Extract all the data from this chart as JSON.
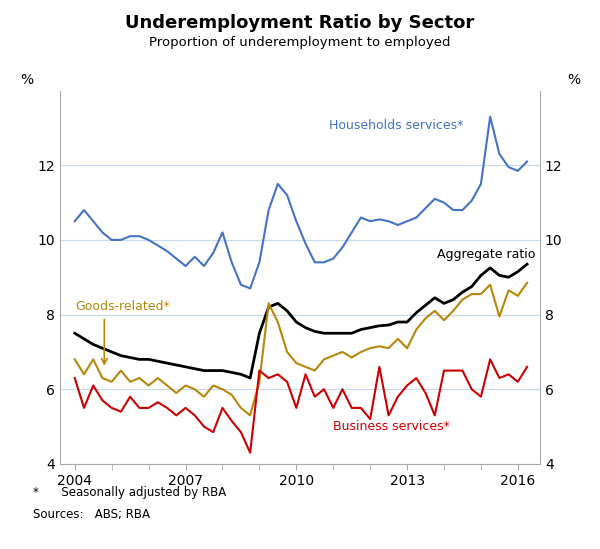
{
  "title": "Underemployment Ratio by Sector",
  "subtitle": "Proportion of underemployment to employed",
  "ylabel_left": "%",
  "ylabel_right": "%",
  "footnote1": "*      Seasonally adjusted by RBA",
  "footnote2": "Sources:   ABS; RBA",
  "ylim": [
    4,
    14
  ],
  "yticks": [
    4,
    6,
    8,
    10,
    12
  ],
  "xlim_start": 2003.6,
  "xlim_end": 2016.6,
  "xtick_years": [
    2004,
    2007,
    2010,
    2013,
    2016
  ],
  "grid_color": "#c5d9f1",
  "background_color": "#ffffff",
  "households_color": "#4472c4",
  "aggregate_color": "#000000",
  "goods_color": "#b8860b",
  "business_color": "#cc0000",
  "households_label": "Households services*",
  "aggregate_label": "Aggregate ratio",
  "goods_label": "Goods-related*",
  "business_label": "Business services*",
  "households_data": {
    "dates": [
      2004.0,
      2004.25,
      2004.5,
      2004.75,
      2005.0,
      2005.25,
      2005.5,
      2005.75,
      2006.0,
      2006.25,
      2006.5,
      2006.75,
      2007.0,
      2007.25,
      2007.5,
      2007.75,
      2008.0,
      2008.25,
      2008.5,
      2008.75,
      2009.0,
      2009.25,
      2009.5,
      2009.75,
      2010.0,
      2010.25,
      2010.5,
      2010.75,
      2011.0,
      2011.25,
      2011.5,
      2011.75,
      2012.0,
      2012.25,
      2012.5,
      2012.75,
      2013.0,
      2013.25,
      2013.5,
      2013.75,
      2014.0,
      2014.25,
      2014.5,
      2014.75,
      2015.0,
      2015.25,
      2015.5,
      2015.75,
      2016.0,
      2016.25
    ],
    "values": [
      10.5,
      10.8,
      10.5,
      10.2,
      10.0,
      10.0,
      10.1,
      10.1,
      10.0,
      9.85,
      9.7,
      9.5,
      9.3,
      9.55,
      9.3,
      9.65,
      10.2,
      9.4,
      8.8,
      8.7,
      9.4,
      10.8,
      11.5,
      11.2,
      10.5,
      9.9,
      9.4,
      9.4,
      9.5,
      9.8,
      10.2,
      10.6,
      10.5,
      10.55,
      10.5,
      10.4,
      10.5,
      10.6,
      10.85,
      11.1,
      11.0,
      10.8,
      10.8,
      11.05,
      11.5,
      13.3,
      12.3,
      11.95,
      11.85,
      12.1
    ]
  },
  "aggregate_data": {
    "dates": [
      2004.0,
      2004.25,
      2004.5,
      2004.75,
      2005.0,
      2005.25,
      2005.5,
      2005.75,
      2006.0,
      2006.25,
      2006.5,
      2006.75,
      2007.0,
      2007.25,
      2007.5,
      2007.75,
      2008.0,
      2008.25,
      2008.5,
      2008.75,
      2009.0,
      2009.25,
      2009.5,
      2009.75,
      2010.0,
      2010.25,
      2010.5,
      2010.75,
      2011.0,
      2011.25,
      2011.5,
      2011.75,
      2012.0,
      2012.25,
      2012.5,
      2012.75,
      2013.0,
      2013.25,
      2013.5,
      2013.75,
      2014.0,
      2014.25,
      2014.5,
      2014.75,
      2015.0,
      2015.25,
      2015.5,
      2015.75,
      2016.0,
      2016.25
    ],
    "values": [
      7.5,
      7.35,
      7.2,
      7.1,
      7.0,
      6.9,
      6.85,
      6.8,
      6.8,
      6.75,
      6.7,
      6.65,
      6.6,
      6.55,
      6.5,
      6.5,
      6.5,
      6.45,
      6.4,
      6.3,
      7.5,
      8.2,
      8.3,
      8.1,
      7.8,
      7.65,
      7.55,
      7.5,
      7.5,
      7.5,
      7.5,
      7.6,
      7.65,
      7.7,
      7.72,
      7.8,
      7.8,
      8.05,
      8.25,
      8.45,
      8.3,
      8.4,
      8.6,
      8.75,
      9.05,
      9.25,
      9.05,
      9.0,
      9.15,
      9.35
    ]
  },
  "goods_data": {
    "dates": [
      2004.0,
      2004.25,
      2004.5,
      2004.75,
      2005.0,
      2005.25,
      2005.5,
      2005.75,
      2006.0,
      2006.25,
      2006.5,
      2006.75,
      2007.0,
      2007.25,
      2007.5,
      2007.75,
      2008.0,
      2008.25,
      2008.5,
      2008.75,
      2009.0,
      2009.25,
      2009.5,
      2009.75,
      2010.0,
      2010.25,
      2010.5,
      2010.75,
      2011.0,
      2011.25,
      2011.5,
      2011.75,
      2012.0,
      2012.25,
      2012.5,
      2012.75,
      2013.0,
      2013.25,
      2013.5,
      2013.75,
      2014.0,
      2014.25,
      2014.5,
      2014.75,
      2015.0,
      2015.25,
      2015.5,
      2015.75,
      2016.0,
      2016.25
    ],
    "values": [
      6.8,
      6.4,
      6.8,
      6.3,
      6.2,
      6.5,
      6.2,
      6.3,
      6.1,
      6.3,
      6.1,
      5.9,
      6.1,
      6.0,
      5.8,
      6.1,
      6.0,
      5.85,
      5.5,
      5.3,
      6.2,
      8.3,
      7.8,
      7.0,
      6.7,
      6.6,
      6.5,
      6.8,
      6.9,
      7.0,
      6.85,
      7.0,
      7.1,
      7.15,
      7.1,
      7.35,
      7.1,
      7.6,
      7.9,
      8.1,
      7.85,
      8.1,
      8.4,
      8.55,
      8.55,
      8.8,
      7.95,
      8.65,
      8.5,
      8.85
    ]
  },
  "business_data": {
    "dates": [
      2004.0,
      2004.25,
      2004.5,
      2004.75,
      2005.0,
      2005.25,
      2005.5,
      2005.75,
      2006.0,
      2006.25,
      2006.5,
      2006.75,
      2007.0,
      2007.25,
      2007.5,
      2007.75,
      2008.0,
      2008.25,
      2008.5,
      2008.75,
      2009.0,
      2009.25,
      2009.5,
      2009.75,
      2010.0,
      2010.25,
      2010.5,
      2010.75,
      2011.0,
      2011.25,
      2011.5,
      2011.75,
      2012.0,
      2012.25,
      2012.5,
      2012.75,
      2013.0,
      2013.25,
      2013.5,
      2013.75,
      2014.0,
      2014.25,
      2014.5,
      2014.75,
      2015.0,
      2015.25,
      2015.5,
      2015.75,
      2016.0,
      2016.25
    ],
    "values": [
      6.3,
      5.5,
      6.1,
      5.7,
      5.5,
      5.4,
      5.8,
      5.5,
      5.5,
      5.65,
      5.5,
      5.3,
      5.5,
      5.3,
      5.0,
      4.85,
      5.5,
      5.15,
      4.85,
      4.3,
      6.5,
      6.3,
      6.4,
      6.2,
      5.5,
      6.4,
      5.8,
      6.0,
      5.5,
      6.0,
      5.5,
      5.5,
      5.2,
      6.6,
      5.3,
      5.8,
      6.1,
      6.3,
      5.9,
      5.3,
      6.5,
      6.5,
      6.5,
      6.0,
      5.8,
      6.8,
      6.3,
      6.4,
      6.2,
      6.6
    ]
  }
}
